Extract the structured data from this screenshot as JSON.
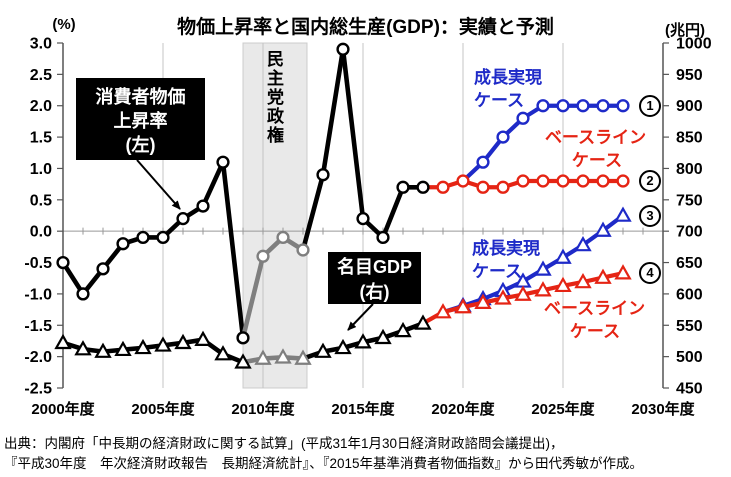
{
  "title": "物価上昇率と国内総生産(GDP)：実績と予測",
  "left_axis_unit": "(%)",
  "right_axis_unit": "(兆円)",
  "source": {
    "line1": "出典：内閣府「中長期の経済財政に関する試算」(平成31年1月30日経済財政諮問会議提出)，",
    "line2": "『平成30年度　年次経済財政報告　長期経済統計』、『2015年基準消費者物価指数』から田代秀敏が作成。"
  },
  "colors": {
    "growth_blue": "#1e2ac8",
    "baseline_red": "#e52414",
    "actual_black": "#000000",
    "dpj_gray": "#7f7f7f",
    "band_fill": "#e9e9e9",
    "band_edge": "#cccccc",
    "grid": "#c4c4c4",
    "axis": "#555555"
  },
  "annotations": {
    "cpi_label": {
      "lines": [
        "消費者物価",
        "上昇率",
        "(左)"
      ]
    },
    "gdp_label": {
      "lines": [
        "名目GDP",
        "(右)"
      ]
    },
    "band_label": "民主党政権",
    "case_labels": [
      {
        "id": "cpi-growth",
        "line1": "成長実現",
        "line2": "ケース",
        "color_key": "growth_blue"
      },
      {
        "id": "cpi-baseline",
        "line1": "ベースライン",
        "line2": "ケース",
        "color_key": "baseline_red"
      },
      {
        "id": "gdp-growth",
        "line1": "成長実現",
        "line2": "ケース",
        "color_key": "growth_blue"
      },
      {
        "id": "gdp-baseline",
        "line1": "ベースライン",
        "line2": "ケース",
        "color_key": "baseline_red"
      }
    ],
    "circled_labels": [
      "1",
      "2",
      "3",
      "4"
    ],
    "circled_attach": [
      "cpi-growth",
      "cpi-baseline",
      "gdp-growth",
      "gdp-baseline"
    ]
  },
  "chart_data": {
    "type": "line",
    "title": "物価上昇率と国内総生産(GDP)：実績と予測",
    "grid": true,
    "left_axis": {
      "unit": "(%)",
      "min": -2.5,
      "max": 3.0,
      "step": 0.5,
      "ticks": [
        "3.0",
        "2.5",
        "2.0",
        "1.5",
        "1.0",
        "0.5",
        "0.0",
        "-0.5",
        "-1.0",
        "-1.5",
        "-2.0",
        "-2.5"
      ]
    },
    "right_axis": {
      "unit": "(兆円)",
      "min": 450,
      "max": 1000,
      "step": 50,
      "ticks": [
        "1000",
        "950",
        "900",
        "850",
        "800",
        "750",
        "700",
        "650",
        "600",
        "550",
        "500",
        "450"
      ]
    },
    "x_axis": {
      "start_year": 2000,
      "end_year": 2030,
      "tick_years": [
        2000,
        2005,
        2010,
        2015,
        2020,
        2025,
        2030
      ],
      "tick_labels": [
        "2000年度",
        "2005年度",
        "2010年度",
        "2015年度",
        "2020年度",
        "2025年度",
        "2030年度"
      ],
      "gridline_years": [
        2005,
        2010,
        2015,
        2020,
        2025
      ]
    },
    "band": {
      "label": "民主党政権",
      "from_year": 2009.0,
      "to_year": 2012.2
    },
    "series": [
      {
        "id": "gdp-growth",
        "name": "名目GDP 成長実現ケース（予測・右軸）",
        "axis": "right",
        "marker": "triangle",
        "color": "#1e2ac8",
        "lw": 4.2,
        "start_year": 2019,
        "markers_from": 1,
        "values": [
          571,
          581,
          592,
          605,
          620,
          639,
          658,
          678,
          701,
          725
        ]
      },
      {
        "id": "gdp-baseline",
        "name": "名目GDP ベースラインケース（予測・右軸）",
        "axis": "right",
        "marker": "triangle",
        "color": "#e52414",
        "lw": 4.2,
        "start_year": 2018,
        "markers_from": 1,
        "values": [
          553,
          571,
          579,
          586,
          593,
          599,
          606,
          613,
          619,
          626,
          633
        ]
      },
      {
        "id": "cpi-growth",
        "name": "消費者物価上昇率 成長実現ケース（予測・左軸）",
        "axis": "left",
        "marker": "circle",
        "color": "#1e2ac8",
        "lw": 4.2,
        "start_year": 2020,
        "markers_from": 1,
        "values": [
          0.8,
          1.1,
          1.5,
          1.8,
          2.0,
          2.0,
          2.0,
          2.0,
          2.0
        ]
      },
      {
        "id": "cpi-baseline",
        "name": "消費者物価上昇率 ベースラインケース（予測・左軸）",
        "axis": "left",
        "marker": "circle",
        "color": "#e52414",
        "lw": 4.2,
        "start_year": 2018,
        "markers_from": 1,
        "values": [
          0.7,
          0.7,
          0.8,
          0.7,
          0.7,
          0.8,
          0.8,
          0.8,
          0.8,
          0.8,
          0.8
        ]
      },
      {
        "id": "gdp-actual",
        "name": "名目GDP（実績・右軸）",
        "axis": "right",
        "marker": "triangle",
        "color": "#000000",
        "lw": 4.6,
        "start_year": 2000,
        "markers_from": 0,
        "gray_years": [
          2009,
          2012
        ],
        "values": [
          522,
          512,
          508,
          511,
          514,
          518,
          522,
          527,
          504,
          491,
          497,
          499,
          497,
          508,
          514,
          523,
          530,
          541,
          553
        ]
      },
      {
        "id": "cpi-actual",
        "name": "消費者物価上昇率（実績・左軸）",
        "axis": "left",
        "marker": "circle",
        "color": "#000000",
        "lw": 4.6,
        "start_year": 2000,
        "markers_from": 0,
        "gray_years": [
          2009,
          2012
        ],
        "values": [
          -0.5,
          -1.0,
          -0.6,
          -0.2,
          -0.1,
          -0.1,
          0.2,
          0.4,
          1.1,
          -1.7,
          -0.4,
          -0.1,
          -0.3,
          0.9,
          2.9,
          0.2,
          -0.1,
          0.7,
          0.7
        ]
      }
    ]
  }
}
